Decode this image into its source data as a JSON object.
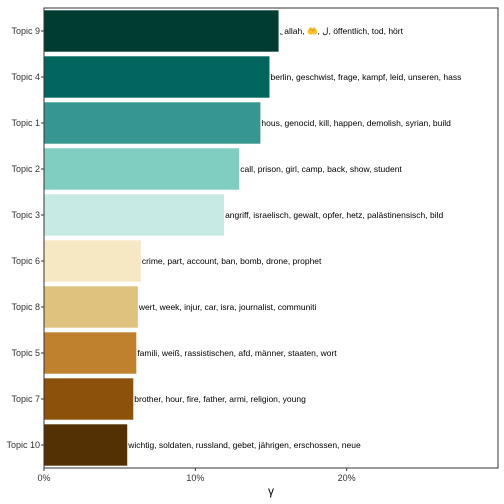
{
  "chart_data": {
    "type": "bar",
    "orientation": "horizontal",
    "categories": [
      "Topic 9",
      "Topic 4",
      "Topic 1",
      "Topic 2",
      "Topic 3",
      "Topic 6",
      "Topic 8",
      "Topic 5",
      "Topic 7",
      "Topic 10"
    ],
    "values": [
      0.155,
      0.149,
      0.143,
      0.129,
      0.119,
      0.064,
      0.062,
      0.061,
      0.059,
      0.055
    ],
    "bar_labels": [
      "ِ, allah, 🤲, ل, öffentlich, tod, hört",
      "berlin, geschwist, frage, kampf, leid, unseren, hass",
      "hous, genocid, kill, happen, demolish, syrian, build",
      "call, prison, girl, camp, back, show, student",
      "angriff, israelisch, gewalt, opfer, hetz, palästinensisch, bild",
      "crime, part, account, ban, bomb, drone, prophet",
      "wert, week, injur, car, isra, journalist, communiti",
      "famili, weiß, rassistischen, afd, männer, staaten, wort",
      "brother, hour, fire, father, armi, religion, young",
      "wichtig, soldaten, russland, gebet, jährigen, erschossen, neue"
    ],
    "colors": [
      "#003c30",
      "#01665e",
      "#35978f",
      "#80cdc1",
      "#c7eae5",
      "#f6e8c3",
      "#dfc27d",
      "#bf812d",
      "#8c510a",
      "#543005"
    ],
    "xlabel": "γ",
    "ylabel": "",
    "title": "",
    "xlim": [
      0,
      0.3
    ],
    "xticks": [
      0,
      0.1,
      0.2
    ],
    "xtick_labels": [
      "0%",
      "10%",
      "20%"
    ],
    "grid": false,
    "legend": "none"
  }
}
